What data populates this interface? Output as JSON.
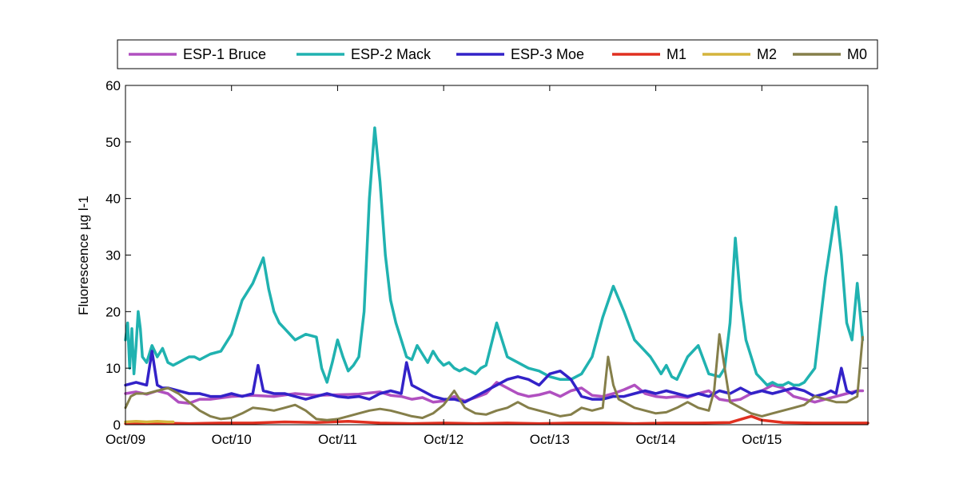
{
  "chart_data": {
    "type": "line",
    "title": "",
    "xlabel": "",
    "ylabel": "Fluorescence µg l-1",
    "ylim": [
      0,
      60
    ],
    "yticks": [
      0,
      10,
      20,
      30,
      40,
      50,
      60
    ],
    "xlim": [
      "Oct/09",
      "Oct/16"
    ],
    "xtick_labels": [
      "Oct/09",
      "Oct/10",
      "Oct/11",
      "Oct/12",
      "Oct/13",
      "Oct/14",
      "Oct/15"
    ],
    "grid": false,
    "legend_position": "top",
    "series": [
      {
        "name": "ESP-1 Bruce",
        "color": "#b050c0",
        "line_width": 3.5,
        "x_days": [
          0.0,
          0.1,
          0.2,
          0.3,
          0.4,
          0.5,
          0.6,
          0.7,
          0.8,
          1.0,
          1.2,
          1.4,
          1.6,
          1.8,
          2.0,
          2.2,
          2.3,
          2.4,
          2.5,
          2.6,
          2.7,
          2.8,
          2.9,
          3.0,
          3.1,
          3.2,
          3.3,
          3.4,
          3.5,
          3.6,
          3.7,
          3.8,
          3.9,
          4.0,
          4.1,
          4.2,
          4.3,
          4.4,
          4.5,
          4.6,
          4.7,
          4.8,
          4.9,
          5.0,
          5.1,
          5.2,
          5.3,
          5.4,
          5.5,
          5.6,
          5.7,
          5.8,
          5.9,
          6.0,
          6.1,
          6.2,
          6.3,
          6.4,
          6.5,
          6.6,
          6.7,
          6.8,
          6.9,
          6.95
        ],
        "y": [
          5.5,
          5.8,
          5.4,
          6.0,
          5.5,
          4.0,
          3.8,
          4.5,
          4.5,
          5.0,
          5.2,
          5.0,
          5.5,
          5.2,
          5.3,
          5.4,
          5.6,
          5.8,
          5.2,
          5.0,
          4.5,
          4.8,
          4.0,
          4.2,
          5.0,
          4.2,
          4.8,
          5.5,
          7.5,
          6.5,
          5.5,
          5.0,
          5.3,
          5.8,
          5.0,
          6.0,
          6.5,
          5.2,
          5.0,
          5.5,
          6.2,
          7.0,
          5.5,
          5.0,
          4.8,
          5.0,
          4.8,
          5.5,
          6.0,
          4.5,
          4.2,
          4.5,
          5.5,
          6.0,
          7.0,
          6.5,
          5.0,
          4.5,
          4.0,
          4.5,
          5.0,
          5.5,
          6.0,
          6.0
        ]
      },
      {
        "name": "ESP-2 Mack",
        "color": "#20b2b0",
        "line_width": 3.5,
        "x_days": [
          0.0,
          0.02,
          0.04,
          0.06,
          0.08,
          0.1,
          0.12,
          0.14,
          0.16,
          0.2,
          0.25,
          0.3,
          0.35,
          0.4,
          0.45,
          0.5,
          0.55,
          0.6,
          0.65,
          0.7,
          0.75,
          0.8,
          0.9,
          1.0,
          1.1,
          1.2,
          1.3,
          1.35,
          1.4,
          1.45,
          1.5,
          1.6,
          1.7,
          1.8,
          1.85,
          1.9,
          1.95,
          2.0,
          2.05,
          2.1,
          2.15,
          2.2,
          2.25,
          2.3,
          2.35,
          2.4,
          2.45,
          2.5,
          2.55,
          2.6,
          2.65,
          2.7,
          2.75,
          2.8,
          2.85,
          2.9,
          2.95,
          3.0,
          3.05,
          3.1,
          3.15,
          3.2,
          3.25,
          3.3,
          3.35,
          3.4,
          3.5,
          3.6,
          3.7,
          3.8,
          3.9,
          4.0,
          4.1,
          4.2,
          4.3,
          4.4,
          4.5,
          4.6,
          4.7,
          4.8,
          4.9,
          4.95,
          5.0,
          5.05,
          5.1,
          5.15,
          5.2,
          5.3,
          5.4,
          5.5,
          5.6,
          5.65,
          5.7,
          5.75,
          5.8,
          5.85,
          5.9,
          5.95,
          6.0,
          6.05,
          6.1,
          6.15,
          6.2,
          6.25,
          6.3,
          6.35,
          6.4,
          6.5,
          6.6,
          6.7,
          6.75,
          6.8,
          6.85,
          6.9,
          6.95
        ],
        "y": [
          15.0,
          18.0,
          10.0,
          17.0,
          9.0,
          14.0,
          20.0,
          17.0,
          12.0,
          11.0,
          14.0,
          12.0,
          13.5,
          11.0,
          10.5,
          11.0,
          11.5,
          12.0,
          12.0,
          11.5,
          12.0,
          12.5,
          13.0,
          16.0,
          22.0,
          25.0,
          29.5,
          24.0,
          20.0,
          18.0,
          17.0,
          15.0,
          16.0,
          15.5,
          10.0,
          7.5,
          11.0,
          15.0,
          12.0,
          9.5,
          10.5,
          12.0,
          20.0,
          40.0,
          52.5,
          43.0,
          30.0,
          22.0,
          18.0,
          15.0,
          12.0,
          11.5,
          14.0,
          12.5,
          11.0,
          13.0,
          11.5,
          10.5,
          11.0,
          10.0,
          9.5,
          10.0,
          9.5,
          9.0,
          10.0,
          10.5,
          18.0,
          12.0,
          11.0,
          10.0,
          9.5,
          8.5,
          8.0,
          8.0,
          9.0,
          12.0,
          19.0,
          24.5,
          20.0,
          15.0,
          13.0,
          12.0,
          10.5,
          9.0,
          10.5,
          8.5,
          8.0,
          12.0,
          14.0,
          9.0,
          8.5,
          10.0,
          18.0,
          33.0,
          22.0,
          15.0,
          12.0,
          9.0,
          8.0,
          7.0,
          7.5,
          7.0,
          7.0,
          7.5,
          7.0,
          7.0,
          7.5,
          10.0,
          26.0,
          38.5,
          30.0,
          18.0,
          15.0,
          25.0,
          15.0
        ]
      },
      {
        "name": "ESP-3 Moe",
        "color": "#3322c8",
        "line_width": 3.5,
        "x_days": [
          0.0,
          0.1,
          0.2,
          0.25,
          0.3,
          0.35,
          0.4,
          0.5,
          0.6,
          0.7,
          0.8,
          0.9,
          1.0,
          1.1,
          1.2,
          1.25,
          1.3,
          1.4,
          1.5,
          1.6,
          1.7,
          1.8,
          1.9,
          2.0,
          2.1,
          2.2,
          2.3,
          2.4,
          2.5,
          2.6,
          2.65,
          2.7,
          2.75,
          2.8,
          2.9,
          3.0,
          3.1,
          3.2,
          3.3,
          3.4,
          3.5,
          3.6,
          3.7,
          3.8,
          3.9,
          4.0,
          4.1,
          4.2,
          4.3,
          4.4,
          4.5,
          4.6,
          4.7,
          4.8,
          4.9,
          5.0,
          5.1,
          5.2,
          5.3,
          5.4,
          5.5,
          5.6,
          5.7,
          5.8,
          5.9,
          6.0,
          6.1,
          6.2,
          6.3,
          6.4,
          6.5,
          6.6,
          6.65,
          6.7,
          6.75,
          6.8,
          6.85,
          6.9
        ],
        "y": [
          7.0,
          7.5,
          7.0,
          13.0,
          7.0,
          6.5,
          6.5,
          6.0,
          5.5,
          5.5,
          5.0,
          5.0,
          5.5,
          5.0,
          5.5,
          10.5,
          6.0,
          5.5,
          5.5,
          5.0,
          4.5,
          5.0,
          5.5,
          5.0,
          4.8,
          5.0,
          4.5,
          5.5,
          6.0,
          5.5,
          11.0,
          7.0,
          6.5,
          6.0,
          5.0,
          4.5,
          4.5,
          4.0,
          5.0,
          6.0,
          7.0,
          8.0,
          8.5,
          8.0,
          7.0,
          9.0,
          9.5,
          8.0,
          5.0,
          4.5,
          4.5,
          5.0,
          5.0,
          5.5,
          6.0,
          5.5,
          6.0,
          5.5,
          5.0,
          5.5,
          5.0,
          6.0,
          5.5,
          6.5,
          5.5,
          6.0,
          5.5,
          6.0,
          6.5,
          6.0,
          5.0,
          5.5,
          6.0,
          5.5,
          10.0,
          6.0,
          5.5,
          6.0
        ]
      },
      {
        "name": "M1",
        "color": "#e03020",
        "line_width": 3.5,
        "x_days": [
          0.0,
          0.3,
          0.6,
          0.9,
          1.2,
          1.5,
          1.8,
          2.1,
          2.4,
          2.7,
          3.0,
          3.3,
          3.6,
          3.9,
          4.2,
          4.5,
          4.8,
          5.1,
          5.4,
          5.7,
          5.9,
          6.0,
          6.2,
          6.5,
          6.8,
          7.0
        ],
        "y": [
          0.2,
          0.3,
          0.2,
          0.3,
          0.3,
          0.5,
          0.4,
          0.6,
          0.3,
          0.2,
          0.3,
          0.2,
          0.3,
          0.2,
          0.3,
          0.3,
          0.2,
          0.3,
          0.3,
          0.4,
          1.5,
          0.8,
          0.4,
          0.3,
          0.3,
          0.3
        ]
      },
      {
        "name": "M2",
        "color": "#d4b43c",
        "line_width": 3.5,
        "x_days": [
          0.0,
          0.1,
          0.2,
          0.3,
          0.4,
          0.45
        ],
        "y": [
          0.5,
          0.6,
          0.5,
          0.6,
          0.5,
          0.5
        ]
      },
      {
        "name": "M0",
        "color": "#857f4a",
        "line_width": 3.0,
        "x_days": [
          0.0,
          0.05,
          0.1,
          0.2,
          0.3,
          0.4,
          0.5,
          0.6,
          0.7,
          0.8,
          0.9,
          1.0,
          1.1,
          1.2,
          1.3,
          1.4,
          1.5,
          1.6,
          1.7,
          1.8,
          1.9,
          2.0,
          2.1,
          2.2,
          2.3,
          2.4,
          2.5,
          2.6,
          2.7,
          2.8,
          2.9,
          3.0,
          3.1,
          3.2,
          3.3,
          3.4,
          3.5,
          3.6,
          3.7,
          3.8,
          3.9,
          4.0,
          4.1,
          4.2,
          4.3,
          4.4,
          4.5,
          4.55,
          4.6,
          4.65,
          4.7,
          4.8,
          4.9,
          5.0,
          5.1,
          5.2,
          5.3,
          5.4,
          5.5,
          5.55,
          5.6,
          5.65,
          5.7,
          5.8,
          5.9,
          6.0,
          6.1,
          6.2,
          6.3,
          6.4,
          6.5,
          6.6,
          6.7,
          6.8,
          6.85,
          6.9,
          6.95
        ],
        "y": [
          3.0,
          5.0,
          5.5,
          5.5,
          6.0,
          6.5,
          5.5,
          4.0,
          2.5,
          1.5,
          1.0,
          1.2,
          2.0,
          3.0,
          2.8,
          2.5,
          3.0,
          3.5,
          2.5,
          1.0,
          0.8,
          1.0,
          1.5,
          2.0,
          2.5,
          2.8,
          2.5,
          2.0,
          1.5,
          1.2,
          2.0,
          3.5,
          6.0,
          3.0,
          2.0,
          1.8,
          2.5,
          3.0,
          4.0,
          3.0,
          2.5,
          2.0,
          1.5,
          1.8,
          3.0,
          2.5,
          3.0,
          12.0,
          7.0,
          4.5,
          4.0,
          3.0,
          2.5,
          2.0,
          2.2,
          3.0,
          4.0,
          3.0,
          2.5,
          6.0,
          16.0,
          10.0,
          4.0,
          3.0,
          2.0,
          1.5,
          2.0,
          2.5,
          3.0,
          3.5,
          5.0,
          4.5,
          4.0,
          4.0,
          4.5,
          5.0,
          15.5
        ]
      }
    ]
  }
}
